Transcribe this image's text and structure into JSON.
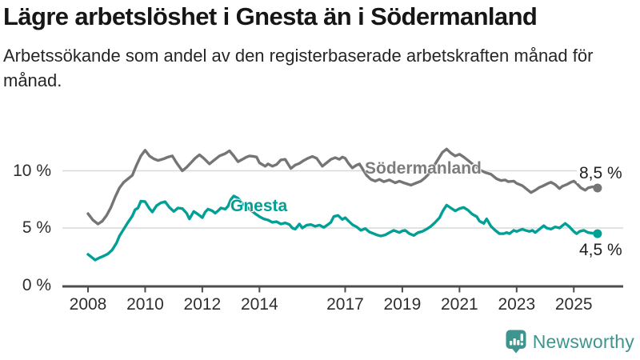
{
  "header": {
    "title": "Lägre arbetslöshet i Gnesta än i Södermanland",
    "subtitle": "Arbetssökande som andel av den registerbaserade arbetskraften månad för månad."
  },
  "chart_data": {
    "type": "line",
    "title": "Lägre arbetslöshet i Gnesta än i Södermanland",
    "xlabel": "",
    "ylabel": "",
    "ylim": [
      0,
      12
    ],
    "grid": true,
    "legend_position": "inline-labels",
    "colors": {
      "sodermanland_line": "#757575",
      "sodermanland_label": "#7c7c7c",
      "gnesta_line": "#00a096",
      "gridline": "#d9d9d9",
      "axis": "#4d4d4d",
      "tick_text": "#2f2f2f"
    },
    "y_axis": {
      "ticks": [
        {
          "label": "0 %",
          "value": 0
        },
        {
          "label": "5 %",
          "value": 5
        },
        {
          "label": "10 %",
          "value": 10
        }
      ]
    },
    "x_axis": {
      "ticks": [
        {
          "label": "2008",
          "year": 2008
        },
        {
          "label": "2010",
          "year": 2010
        },
        {
          "label": "2012",
          "year": 2012
        },
        {
          "label": "2014",
          "year": 2014
        },
        {
          "label": "2017",
          "year": 2017
        },
        {
          "label": "2019",
          "year": 2019
        },
        {
          "label": "2021",
          "year": 2021
        },
        {
          "label": "2023",
          "year": 2023
        },
        {
          "label": "2025",
          "year": 2025
        }
      ]
    },
    "series": [
      {
        "name": "Södermanland",
        "end_label": "8,5 %",
        "end_value": 8.5,
        "color": "#757575",
        "points": [
          [
            2008.0,
            6.25
          ],
          [
            2008.17,
            5.7
          ],
          [
            2008.35,
            5.35
          ],
          [
            2008.5,
            5.6
          ],
          [
            2008.65,
            6.1
          ],
          [
            2008.8,
            6.8
          ],
          [
            2008.95,
            7.7
          ],
          [
            2009.1,
            8.5
          ],
          [
            2009.25,
            9.0
          ],
          [
            2009.4,
            9.3
          ],
          [
            2009.55,
            9.6
          ],
          [
            2009.7,
            10.5
          ],
          [
            2009.85,
            11.3
          ],
          [
            2010.0,
            11.8
          ],
          [
            2010.15,
            11.3
          ],
          [
            2010.3,
            11.05
          ],
          [
            2010.45,
            10.9
          ],
          [
            2010.65,
            11.05
          ],
          [
            2010.8,
            11.2
          ],
          [
            2010.95,
            11.3
          ],
          [
            2011.1,
            10.7
          ],
          [
            2011.3,
            10.0
          ],
          [
            2011.45,
            10.3
          ],
          [
            2011.6,
            10.7
          ],
          [
            2011.75,
            11.1
          ],
          [
            2011.9,
            11.4
          ],
          [
            2012.05,
            11.1
          ],
          [
            2012.25,
            10.6
          ],
          [
            2012.4,
            10.9
          ],
          [
            2012.6,
            11.3
          ],
          [
            2012.8,
            11.5
          ],
          [
            2012.95,
            11.75
          ],
          [
            2013.1,
            11.3
          ],
          [
            2013.25,
            10.8
          ],
          [
            2013.4,
            11.0
          ],
          [
            2013.55,
            11.2
          ],
          [
            2013.65,
            11.3
          ],
          [
            2013.8,
            11.25
          ],
          [
            2013.9,
            11.2
          ],
          [
            2014.0,
            10.7
          ],
          [
            2014.2,
            10.4
          ],
          [
            2014.3,
            10.6
          ],
          [
            2014.45,
            10.4
          ],
          [
            2014.6,
            10.55
          ],
          [
            2014.75,
            10.95
          ],
          [
            2014.9,
            11.0
          ],
          [
            2015.0,
            10.6
          ],
          [
            2015.1,
            10.2
          ],
          [
            2015.25,
            10.5
          ],
          [
            2015.4,
            10.65
          ],
          [
            2015.55,
            10.9
          ],
          [
            2015.7,
            11.1
          ],
          [
            2015.85,
            11.25
          ],
          [
            2016.0,
            11.1
          ],
          [
            2016.1,
            10.75
          ],
          [
            2016.2,
            10.4
          ],
          [
            2016.35,
            10.7
          ],
          [
            2016.5,
            11.0
          ],
          [
            2016.65,
            11.15
          ],
          [
            2016.8,
            11.0
          ],
          [
            2016.9,
            11.2
          ],
          [
            2017.0,
            11.1
          ],
          [
            2017.1,
            10.7
          ],
          [
            2017.25,
            10.25
          ],
          [
            2017.4,
            10.5
          ],
          [
            2017.5,
            10.6
          ],
          [
            2017.6,
            10.2
          ],
          [
            2017.75,
            9.6
          ],
          [
            2017.9,
            9.25
          ],
          [
            2018.05,
            9.1
          ],
          [
            2018.2,
            9.25
          ],
          [
            2018.35,
            9.05
          ],
          [
            2018.55,
            9.2
          ],
          [
            2018.75,
            8.95
          ],
          [
            2018.9,
            9.1
          ],
          [
            2019.05,
            8.95
          ],
          [
            2019.3,
            8.75
          ],
          [
            2019.5,
            8.95
          ],
          [
            2019.65,
            9.1
          ],
          [
            2019.8,
            9.4
          ],
          [
            2019.95,
            9.8
          ],
          [
            2020.1,
            10.4
          ],
          [
            2020.25,
            11.0
          ],
          [
            2020.4,
            11.6
          ],
          [
            2020.55,
            11.9
          ],
          [
            2020.7,
            11.55
          ],
          [
            2020.85,
            11.3
          ],
          [
            2021.0,
            11.45
          ],
          [
            2021.15,
            11.2
          ],
          [
            2021.3,
            10.9
          ],
          [
            2021.5,
            10.5
          ],
          [
            2021.7,
            10.1
          ],
          [
            2021.9,
            9.85
          ],
          [
            2022.1,
            9.7
          ],
          [
            2022.3,
            9.3
          ],
          [
            2022.45,
            9.15
          ],
          [
            2022.6,
            9.2
          ],
          [
            2022.7,
            9.05
          ],
          [
            2022.9,
            9.1
          ],
          [
            2023.0,
            8.9
          ],
          [
            2023.2,
            8.7
          ],
          [
            2023.4,
            8.3
          ],
          [
            2023.5,
            8.1
          ],
          [
            2023.65,
            8.3
          ],
          [
            2023.8,
            8.55
          ],
          [
            2023.9,
            8.65
          ],
          [
            2024.1,
            8.9
          ],
          [
            2024.2,
            9.0
          ],
          [
            2024.35,
            8.8
          ],
          [
            2024.5,
            8.45
          ],
          [
            2024.6,
            8.65
          ],
          [
            2024.75,
            8.8
          ],
          [
            2024.9,
            9.0
          ],
          [
            2025.0,
            9.1
          ],
          [
            2025.1,
            8.9
          ],
          [
            2025.25,
            8.5
          ],
          [
            2025.4,
            8.3
          ],
          [
            2025.5,
            8.5
          ],
          [
            2025.65,
            8.6
          ],
          [
            2025.83,
            8.5
          ]
        ]
      },
      {
        "name": "Gnesta",
        "end_label": "4,5 %",
        "end_value": 4.5,
        "color": "#00a096",
        "points": [
          [
            2008.0,
            2.7
          ],
          [
            2008.15,
            2.4
          ],
          [
            2008.25,
            2.2
          ],
          [
            2008.4,
            2.4
          ],
          [
            2008.55,
            2.55
          ],
          [
            2008.7,
            2.75
          ],
          [
            2008.85,
            3.1
          ],
          [
            2009.0,
            3.7
          ],
          [
            2009.1,
            4.3
          ],
          [
            2009.25,
            4.9
          ],
          [
            2009.4,
            5.5
          ],
          [
            2009.55,
            6.05
          ],
          [
            2009.65,
            6.6
          ],
          [
            2009.75,
            6.75
          ],
          [
            2009.85,
            7.35
          ],
          [
            2010.0,
            7.3
          ],
          [
            2010.15,
            6.7
          ],
          [
            2010.25,
            6.4
          ],
          [
            2010.4,
            6.95
          ],
          [
            2010.55,
            7.2
          ],
          [
            2010.7,
            7.3
          ],
          [
            2010.85,
            6.8
          ],
          [
            2011.0,
            6.45
          ],
          [
            2011.15,
            6.75
          ],
          [
            2011.3,
            6.7
          ],
          [
            2011.45,
            6.3
          ],
          [
            2011.55,
            5.8
          ],
          [
            2011.7,
            6.45
          ],
          [
            2011.85,
            6.2
          ],
          [
            2012.0,
            5.9
          ],
          [
            2012.1,
            6.4
          ],
          [
            2012.2,
            6.65
          ],
          [
            2012.35,
            6.5
          ],
          [
            2012.45,
            6.3
          ],
          [
            2012.55,
            6.5
          ],
          [
            2012.65,
            6.75
          ],
          [
            2012.8,
            6.65
          ],
          [
            2012.9,
            6.9
          ],
          [
            2013.0,
            7.5
          ],
          [
            2013.1,
            7.8
          ],
          [
            2013.25,
            7.6
          ],
          [
            2013.4,
            7.15
          ],
          [
            2013.55,
            6.85
          ],
          [
            2013.7,
            6.55
          ],
          [
            2013.85,
            6.25
          ],
          [
            2014.0,
            6.0
          ],
          [
            2014.15,
            5.8
          ],
          [
            2014.3,
            5.7
          ],
          [
            2014.45,
            5.5
          ],
          [
            2014.6,
            5.55
          ],
          [
            2014.75,
            5.35
          ],
          [
            2014.9,
            5.45
          ],
          [
            2015.05,
            5.3
          ],
          [
            2015.15,
            5.0
          ],
          [
            2015.25,
            4.9
          ],
          [
            2015.4,
            5.35
          ],
          [
            2015.5,
            5.0
          ],
          [
            2015.65,
            5.25
          ],
          [
            2015.8,
            5.3
          ],
          [
            2015.95,
            5.15
          ],
          [
            2016.1,
            5.25
          ],
          [
            2016.25,
            5.05
          ],
          [
            2016.4,
            5.3
          ],
          [
            2016.5,
            5.5
          ],
          [
            2016.6,
            6.0
          ],
          [
            2016.75,
            6.1
          ],
          [
            2016.9,
            5.75
          ],
          [
            2017.0,
            5.9
          ],
          [
            2017.1,
            5.65
          ],
          [
            2017.25,
            5.3
          ],
          [
            2017.4,
            5.1
          ],
          [
            2017.55,
            4.8
          ],
          [
            2017.7,
            4.95
          ],
          [
            2017.85,
            4.65
          ],
          [
            2018.0,
            4.5
          ],
          [
            2018.1,
            4.4
          ],
          [
            2018.25,
            4.3
          ],
          [
            2018.4,
            4.4
          ],
          [
            2018.55,
            4.6
          ],
          [
            2018.7,
            4.8
          ],
          [
            2018.9,
            4.6
          ],
          [
            2019.0,
            4.75
          ],
          [
            2019.1,
            4.8
          ],
          [
            2019.25,
            4.5
          ],
          [
            2019.4,
            4.35
          ],
          [
            2019.55,
            4.6
          ],
          [
            2019.7,
            4.7
          ],
          [
            2019.85,
            4.9
          ],
          [
            2020.0,
            5.15
          ],
          [
            2020.15,
            5.5
          ],
          [
            2020.3,
            5.9
          ],
          [
            2020.42,
            6.5
          ],
          [
            2020.55,
            7.0
          ],
          [
            2020.7,
            6.75
          ],
          [
            2020.85,
            6.5
          ],
          [
            2021.0,
            6.7
          ],
          [
            2021.15,
            6.8
          ],
          [
            2021.3,
            6.55
          ],
          [
            2021.45,
            6.2
          ],
          [
            2021.6,
            6.0
          ],
          [
            2021.7,
            5.6
          ],
          [
            2021.85,
            5.4
          ],
          [
            2021.95,
            5.8
          ],
          [
            2022.1,
            5.15
          ],
          [
            2022.25,
            4.8
          ],
          [
            2022.4,
            4.5
          ],
          [
            2022.55,
            4.5
          ],
          [
            2022.65,
            4.6
          ],
          [
            2022.75,
            4.5
          ],
          [
            2022.9,
            4.8
          ],
          [
            2023.0,
            4.7
          ],
          [
            2023.2,
            4.9
          ],
          [
            2023.3,
            4.8
          ],
          [
            2023.45,
            4.7
          ],
          [
            2023.55,
            4.8
          ],
          [
            2023.65,
            4.6
          ],
          [
            2023.8,
            4.9
          ],
          [
            2023.95,
            5.2
          ],
          [
            2024.05,
            5.0
          ],
          [
            2024.2,
            4.9
          ],
          [
            2024.35,
            5.1
          ],
          [
            2024.5,
            5.0
          ],
          [
            2024.6,
            5.2
          ],
          [
            2024.7,
            5.4
          ],
          [
            2024.85,
            5.1
          ],
          [
            2025.0,
            4.7
          ],
          [
            2025.1,
            4.5
          ],
          [
            2025.2,
            4.7
          ],
          [
            2025.35,
            4.8
          ],
          [
            2025.5,
            4.6
          ],
          [
            2025.65,
            4.55
          ],
          [
            2025.83,
            4.5
          ]
        ]
      }
    ]
  },
  "footer": {
    "brand": "Newsworthy",
    "brand_color": "#3e948e",
    "icon": "newsworthy-bubble-chart-icon"
  }
}
